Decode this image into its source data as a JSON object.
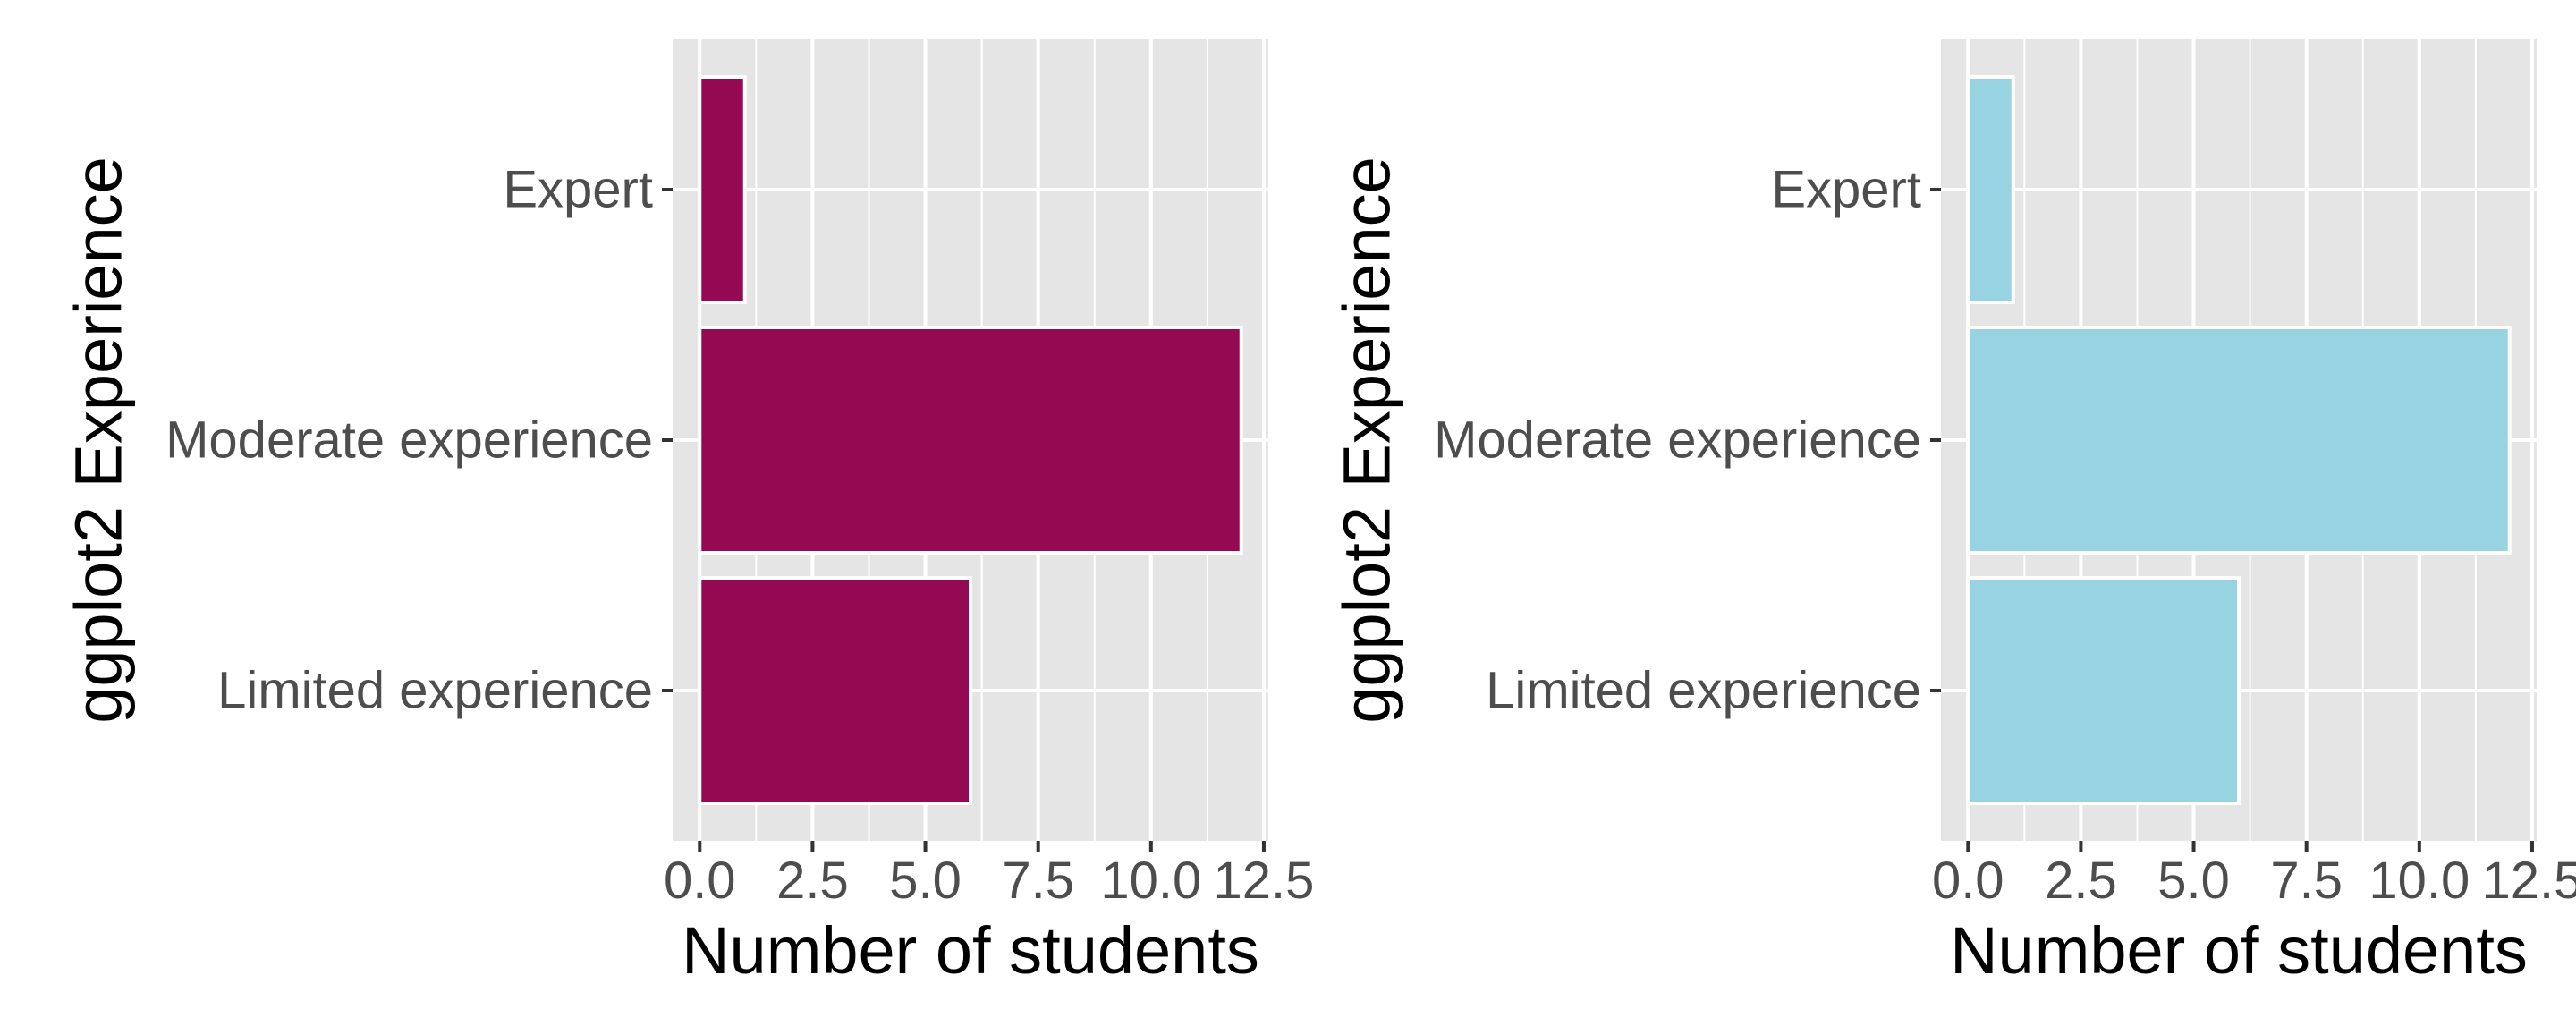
{
  "chart_data": [
    {
      "type": "bar",
      "orientation": "horizontal",
      "categories": [
        "Limited experience",
        "Moderate experience",
        "Expert"
      ],
      "values": [
        6,
        12,
        1
      ],
      "xlabel": "Number of students",
      "ylabel": "ggplot2 Experience",
      "xlim": [
        -0.6,
        12.6
      ],
      "xticks": [
        "0.0",
        "2.5",
        "5.0",
        "7.5",
        "10.0",
        "12.5"
      ],
      "grid": true,
      "bar_fill": "#950952",
      "bar_outline": "#ffffff",
      "panel_background": "#e5e5e5"
    },
    {
      "type": "bar",
      "orientation": "horizontal",
      "categories": [
        "Limited experience",
        "Moderate experience",
        "Expert"
      ],
      "values": [
        6,
        12,
        1
      ],
      "xlabel": "Number of students",
      "ylabel": "ggplot2 Experience",
      "xlim": [
        -0.6,
        12.6
      ],
      "xticks": [
        "0.0",
        "2.5",
        "5.0",
        "7.5",
        "10.0",
        "12.5"
      ],
      "grid": true,
      "bar_fill": "#97d3e1",
      "bar_outline": "#ffffff",
      "panel_background": "#e5e5e5"
    }
  ]
}
